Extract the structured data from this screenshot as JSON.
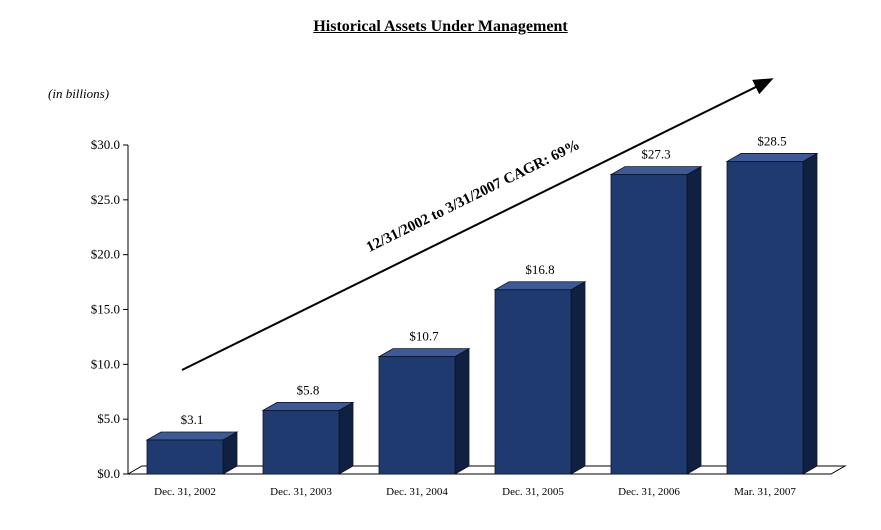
{
  "chart_data": {
    "type": "bar",
    "title": "Historical Assets Under Management",
    "units_label": "(in billions)",
    "categories": [
      "Dec. 31, 2002",
      "Dec. 31, 2003",
      "Dec. 31, 2004",
      "Dec. 31, 2005",
      "Dec. 31, 2006",
      "Mar. 31, 2007"
    ],
    "values": [
      3.1,
      5.8,
      10.7,
      16.8,
      27.3,
      28.5
    ],
    "value_labels": [
      "$3.1",
      "$5.8",
      "$10.7",
      "$16.8",
      "$27.3",
      "$28.5"
    ],
    "y_ticks": [
      0,
      5,
      10,
      15,
      20,
      25,
      30
    ],
    "y_tick_labels": [
      "$0.0",
      "$5.0",
      "$10.0",
      "$15.0",
      "$20.0",
      "$25.0",
      "$30.0"
    ],
    "ylim": [
      0,
      30
    ],
    "xlabel": "",
    "ylabel": "",
    "annotation": "12/31/2002 to 3/31/2007 CAGR: 69%",
    "colors": {
      "bar_front": "#1f3a6e",
      "bar_top": "#3d5a96",
      "bar_side": "#0f2040"
    }
  }
}
